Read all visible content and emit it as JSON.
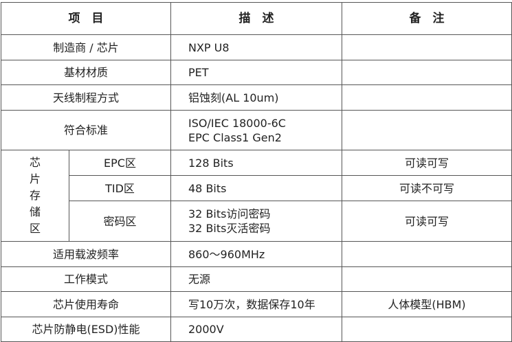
{
  "headers": [
    "项　目",
    "描　述",
    "备　注"
  ],
  "rows": [
    {
      "item": "制造商 / 芯片",
      "desc": [
        "NXP U8"
      ],
      "note": ""
    },
    {
      "item": "基材材质",
      "desc": [
        "PET"
      ],
      "note": ""
    },
    {
      "item": "天线制程方式",
      "desc": [
        "铝蚀刻(AL 10um)"
      ],
      "note": ""
    },
    {
      "item": "符合标准",
      "desc": [
        "ISO/IEC 18000-6C",
        "EPC Class1 Gen2"
      ],
      "note": ""
    }
  ],
  "memory": {
    "group_label": [
      "芯",
      "片",
      "存",
      "储",
      "区"
    ],
    "rows": [
      {
        "item": "EPC区",
        "desc": [
          "128 Bits"
        ],
        "note": "可读可写"
      },
      {
        "item": "TID区",
        "desc": [
          "48 Bits"
        ],
        "note": "可读不可写"
      },
      {
        "item": "密码区",
        "desc": [
          "32 Bits访问密码",
          "32 Bits灭活密码"
        ],
        "note": "可读可写"
      }
    ]
  },
  "rows2": [
    {
      "item": "适用载波频率",
      "desc": [
        "860～960MHz"
      ],
      "note": ""
    },
    {
      "item": "工作模式",
      "desc": [
        "无源"
      ],
      "note": ""
    },
    {
      "item": "芯片使用寿命",
      "desc": [
        "写10万次，数据保存10年"
      ],
      "note": "人体模型(HBM)"
    },
    {
      "item": "芯片防静电(ESD)性能",
      "desc": [
        "2000V"
      ],
      "note": ""
    }
  ]
}
